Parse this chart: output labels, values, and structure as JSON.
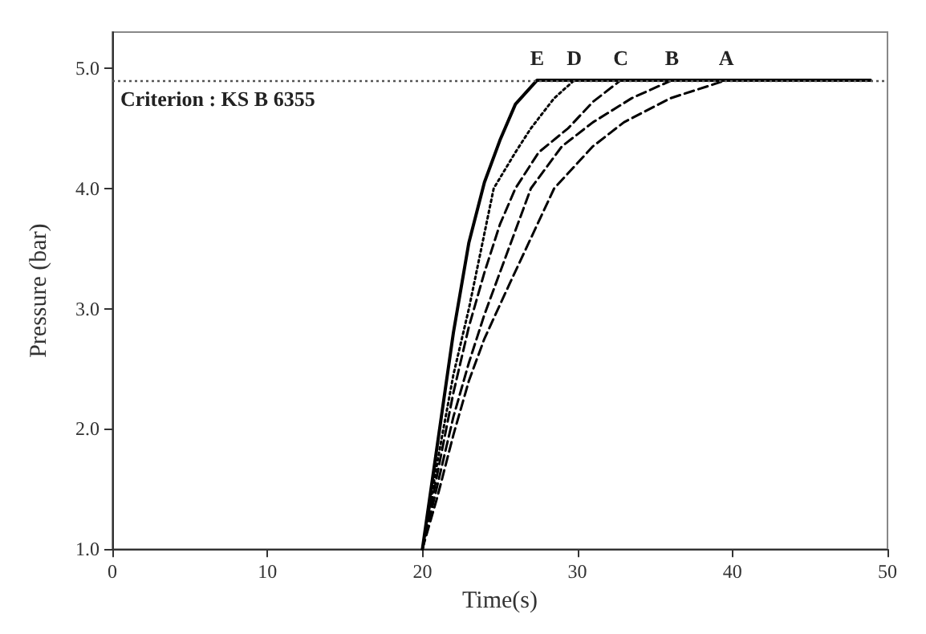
{
  "chart_data": {
    "type": "line",
    "xlabel": "Time(s)",
    "ylabel": "Pressure (bar)",
    "xlim": [
      0,
      50
    ],
    "xticks": [
      0,
      10,
      20,
      30,
      40,
      50
    ],
    "ylim": [
      1.0,
      5.3
    ],
    "yticks": [
      {
        "value": 1.0,
        "label": "1.0"
      },
      {
        "value": 2.0,
        "label": "2.0"
      },
      {
        "value": 3.0,
        "label": "3.0"
      },
      {
        "value": 4.0,
        "label": "4.0"
      },
      {
        "value": 5.0,
        "label": "5.0"
      }
    ],
    "grid": false,
    "marker": "none",
    "series": [
      {
        "color": "#000000",
        "line_style": "solid",
        "x": [
          20,
          21,
          22,
          23,
          24,
          25,
          26,
          27.4,
          48.9
        ],
        "values": [
          1.0,
          1.9,
          2.8,
          3.55,
          4.05,
          4.4,
          4.7,
          4.9,
          4.9
        ]
      },
      {
        "color": "#000000",
        "line_style": "dotted",
        "x": [
          20,
          21,
          22,
          23,
          24.6,
          26,
          27,
          28.5,
          29.8
        ],
        "values": [
          1.0,
          1.75,
          2.45,
          3.0,
          4.0,
          4.3,
          4.5,
          4.75,
          4.9
        ]
      },
      {
        "color": "#000000",
        "line_style": "dashed",
        "x": [
          20,
          21,
          22,
          23,
          24,
          25,
          26,
          27.5,
          29.4,
          31,
          32.8
        ],
        "values": [
          1.0,
          1.65,
          2.3,
          2.85,
          3.3,
          3.7,
          4.0,
          4.3,
          4.5,
          4.72,
          4.9
        ]
      },
      {
        "color": "#000000",
        "line_style": "dashed",
        "x": [
          20,
          21,
          22,
          23,
          24,
          25,
          27,
          29,
          31,
          33.5,
          36.1
        ],
        "values": [
          1.0,
          1.55,
          2.1,
          2.55,
          2.95,
          3.3,
          4.0,
          4.35,
          4.55,
          4.75,
          4.9
        ]
      },
      {
        "color": "#000000",
        "line_style": "dashed",
        "x": [
          20,
          21,
          22,
          23,
          24,
          25.6,
          28.5,
          31,
          33,
          36,
          39.6
        ],
        "values": [
          1.0,
          1.45,
          1.95,
          2.4,
          2.75,
          3.2,
          4.0,
          4.35,
          4.55,
          4.75,
          4.9
        ]
      }
    ],
    "ref_lines": [
      {
        "axis": "y",
        "value": 4.9,
        "label": "Criterion : KS B 6355",
        "line_style": "dotted",
        "color": "#555555"
      }
    ],
    "annotations": [
      {
        "text": "E",
        "x": 27.4,
        "y": 4.9
      },
      {
        "text": "D",
        "x": 29.8,
        "y": 4.9
      },
      {
        "text": "C",
        "x": 32.8,
        "y": 4.9
      },
      {
        "text": "B",
        "x": 36.1,
        "y": 4.9
      },
      {
        "text": "A",
        "x": 39.6,
        "y": 4.9
      }
    ]
  }
}
